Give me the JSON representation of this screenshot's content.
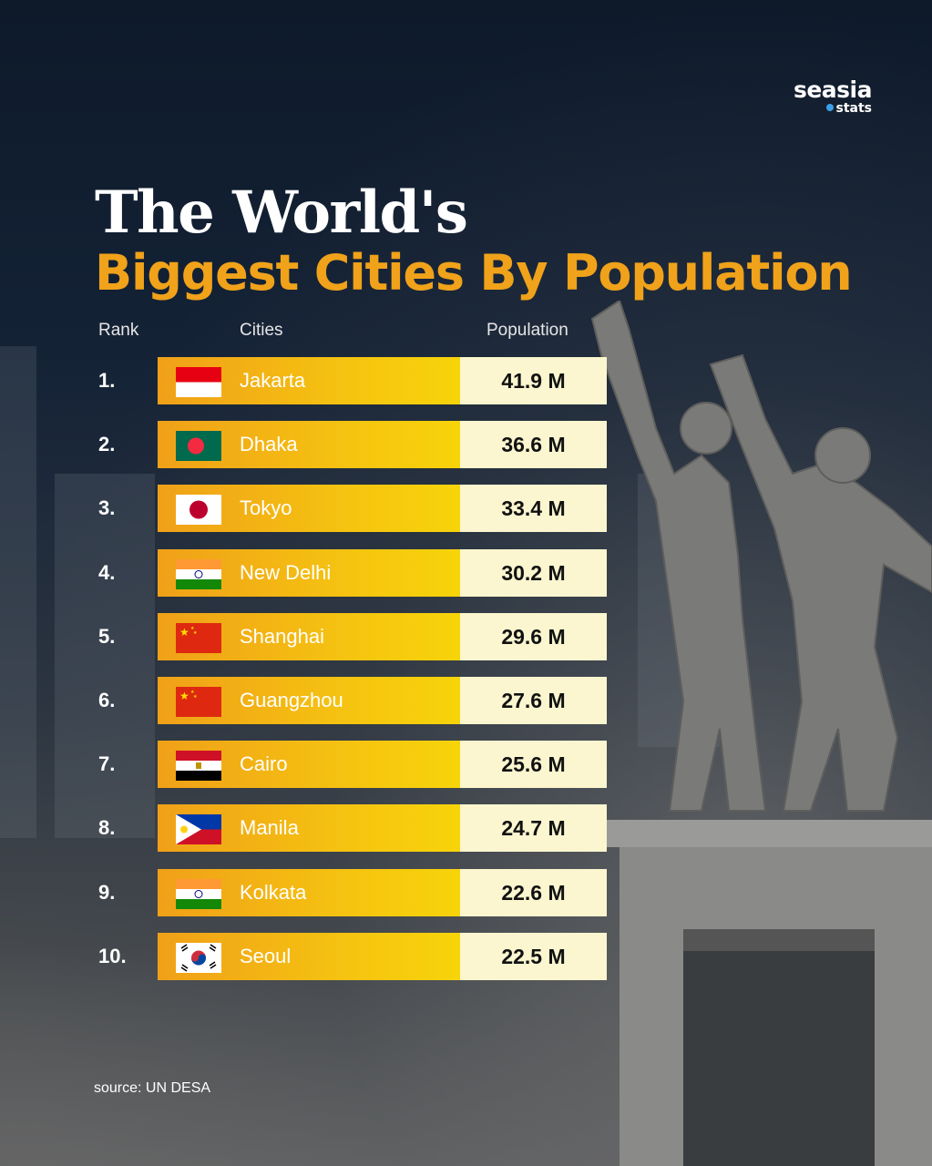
{
  "brand": {
    "name": "seasia",
    "sub": "stats",
    "accent": "#3aa0e8"
  },
  "title": {
    "line1": "The World's",
    "line2": "Biggest Cities By Population",
    "line2_color": "#f0a21a"
  },
  "headers": {
    "rank": "Rank",
    "cities": "Cities",
    "population": "Population"
  },
  "rows": [
    {
      "rank": "1.",
      "city": "Jakarta",
      "population": "41.9 M",
      "flag": "indonesia-flag-icon"
    },
    {
      "rank": "2.",
      "city": "Dhaka",
      "population": "36.6 M",
      "flag": "bangladesh-flag-icon"
    },
    {
      "rank": "3.",
      "city": "Tokyo",
      "population": "33.4 M",
      "flag": "japan-flag-icon"
    },
    {
      "rank": "4.",
      "city": "New Delhi",
      "population": "30.2 M",
      "flag": "india-flag-icon"
    },
    {
      "rank": "5.",
      "city": "Shanghai",
      "population": "29.6 M",
      "flag": "china-flag-icon"
    },
    {
      "rank": "6.",
      "city": "Guangzhou",
      "population": "27.6 M",
      "flag": "china-flag-icon"
    },
    {
      "rank": "7.",
      "city": "Cairo",
      "population": "25.6 M",
      "flag": "egypt-flag-icon"
    },
    {
      "rank": "8.",
      "city": "Manila",
      "population": "24.7 M",
      "flag": "philippines-flag-icon"
    },
    {
      "rank": "9.",
      "city": "Kolkata",
      "population": "22.6 M",
      "flag": "india-flag-icon"
    },
    {
      "rank": "10.",
      "city": "Seoul",
      "population": "22.5 M",
      "flag": "south-korea-flag-icon"
    }
  ],
  "source": "source: UN DESA",
  "colors": {
    "bar_start": "#f0a018",
    "bar_end": "#f7d40a",
    "pop_cell": "#fbf6cf",
    "background": "#0f1b2c"
  }
}
